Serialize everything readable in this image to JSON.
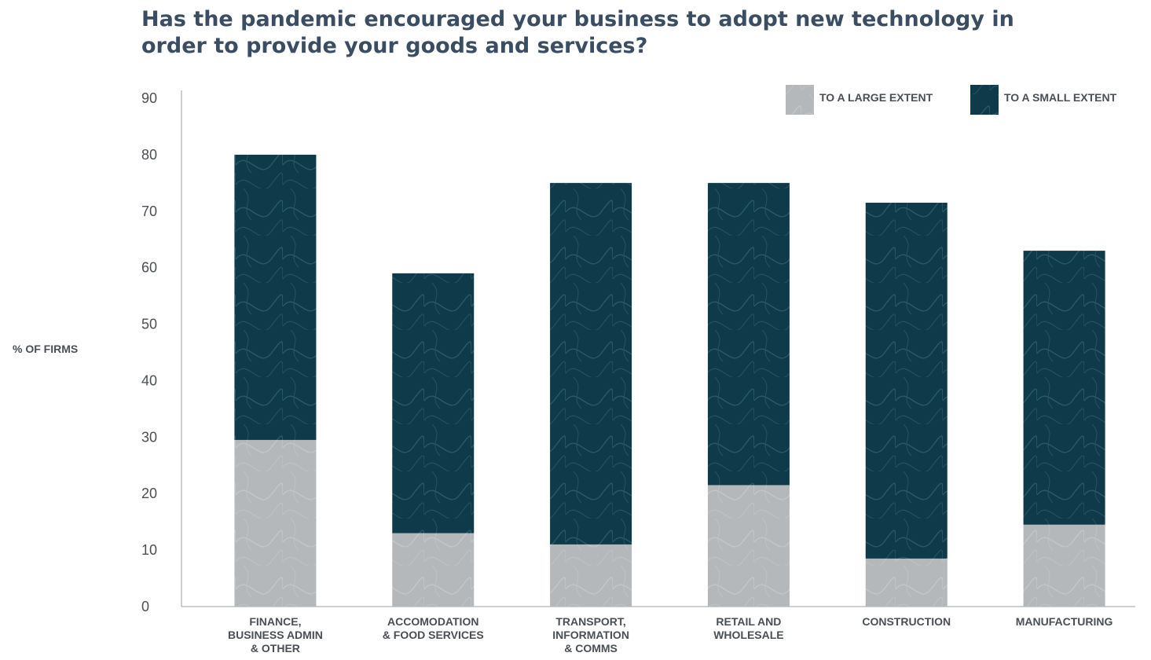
{
  "chart_data": {
    "type": "bar",
    "stacked": true,
    "title_lines": [
      "Has the pandemic encouraged your business to adopt new technology in",
      "order to provide your goods and services?"
    ],
    "ylabel": "% OF FIRMS",
    "ylim": [
      0,
      90
    ],
    "yticks": [
      "0",
      "10",
      "20",
      "30",
      "40",
      "50",
      "60",
      "70",
      "80",
      "90"
    ],
    "categories": [
      [
        "FINANCE,",
        "BUSINESS ADMIN",
        "& OTHER"
      ],
      [
        "ACCOMODATION",
        "& FOOD SERVICES"
      ],
      [
        "TRANSPORT,",
        "INFORMATION",
        "& COMMS"
      ],
      [
        "RETAIL AND",
        "WHOLESALE"
      ],
      [
        "CONSTRUCTION"
      ],
      [
        "MANUFACTURING"
      ]
    ],
    "series": [
      {
        "name": "TO A LARGE EXTENT",
        "values": [
          29.5,
          13,
          11,
          21.5,
          8.5,
          14.5
        ]
      },
      {
        "name": "TO A SMALL EXTENT",
        "values": [
          50.5,
          46,
          64,
          53.5,
          63,
          48.5
        ]
      }
    ],
    "legend_position": "top-right",
    "grid": false,
    "colors": [
      "#b4b8bb",
      "#0e3a4a"
    ]
  }
}
